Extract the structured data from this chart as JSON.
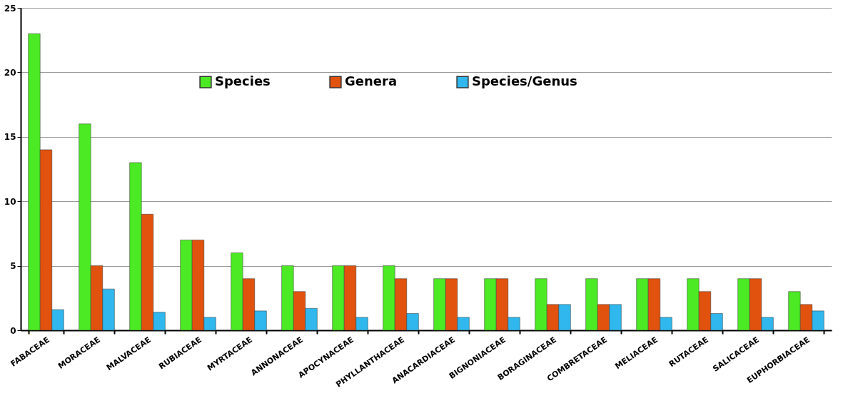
{
  "chart_data": {
    "type": "bar",
    "categories": [
      "FABACEAE",
      "MORACEAE",
      "MALVACEAE",
      "RUBIACEAE",
      "MYRTACEAE",
      "ANNONACEAE",
      "APOCYNACEAE",
      "PHYLLANTHACEAE",
      "ANACARDIACEAE",
      "BIGNONIACEAE",
      "BORAGINACEAE",
      "COMBRETACEAE",
      "MELIACEAE",
      "RUTACEAE",
      "SALICACEAE",
      "EUPHORBIACEAE"
    ],
    "series": [
      {
        "name": "Species",
        "color": "#4cea24",
        "values": [
          23,
          16,
          13,
          7,
          6,
          5,
          5,
          5,
          4,
          4,
          4,
          4,
          4,
          4,
          4,
          3
        ]
      },
      {
        "name": "Genera",
        "color": "#e0520e",
        "values": [
          14,
          5,
          9,
          7,
          4,
          3,
          5,
          4,
          4,
          4,
          2,
          2,
          4,
          3,
          4,
          2
        ]
      },
      {
        "name": "Species/Genus",
        "color": "#30b8ee",
        "values": [
          1.6,
          3.2,
          1.4,
          1,
          1.5,
          1.7,
          1,
          1.3,
          1,
          1,
          2,
          2,
          1,
          1.3,
          1,
          1.5
        ]
      }
    ],
    "ylim": [
      0,
      25
    ],
    "yticks": [
      0,
      5,
      10,
      15,
      20,
      25
    ],
    "grid": "y",
    "legend": "top"
  }
}
